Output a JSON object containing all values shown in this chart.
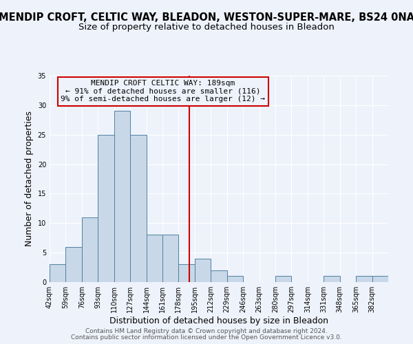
{
  "title": "MENDIP CROFT, CELTIC WAY, BLEADON, WESTON-SUPER-MARE, BS24 0NA",
  "subtitle": "Size of property relative to detached houses in Bleadon",
  "xlabel": "Distribution of detached houses by size in Bleadon",
  "ylabel": "Number of detached properties",
  "bin_labels": [
    "42sqm",
    "59sqm",
    "76sqm",
    "93sqm",
    "110sqm",
    "127sqm",
    "144sqm",
    "161sqm",
    "178sqm",
    "195sqm",
    "212sqm",
    "229sqm",
    "246sqm",
    "263sqm",
    "280sqm",
    "297sqm",
    "314sqm",
    "331sqm",
    "348sqm",
    "365sqm",
    "382sqm"
  ],
  "bin_edges": [
    42,
    59,
    76,
    93,
    110,
    127,
    144,
    161,
    178,
    195,
    212,
    229,
    246,
    263,
    280,
    297,
    314,
    331,
    348,
    365,
    382
  ],
  "bar_heights": [
    3,
    6,
    11,
    25,
    29,
    25,
    8,
    8,
    3,
    4,
    2,
    1,
    0,
    0,
    1,
    0,
    0,
    1,
    0,
    1,
    1
  ],
  "bar_color": "#c8d8e8",
  "bar_edge_color": "#5080a0",
  "vline_x": 189,
  "vline_color": "#cc0000",
  "annotation_title": "MENDIP CROFT CELTIC WAY: 189sqm",
  "annotation_line1": "← 91% of detached houses are smaller (116)",
  "annotation_line2": "9% of semi-detached houses are larger (12) →",
  "annotation_box_color": "#cc0000",
  "ylim": [
    0,
    35
  ],
  "yticks": [
    0,
    5,
    10,
    15,
    20,
    25,
    30,
    35
  ],
  "footer1": "Contains HM Land Registry data © Crown copyright and database right 2024.",
  "footer2": "Contains public sector information licensed under the Open Government Licence v3.0.",
  "background_color": "#eef2fb",
  "grid_color": "#ffffff",
  "title_fontsize": 10.5,
  "subtitle_fontsize": 9.5,
  "label_fontsize": 9,
  "tick_fontsize": 7,
  "footer_fontsize": 6.5,
  "annotation_fontsize": 8
}
